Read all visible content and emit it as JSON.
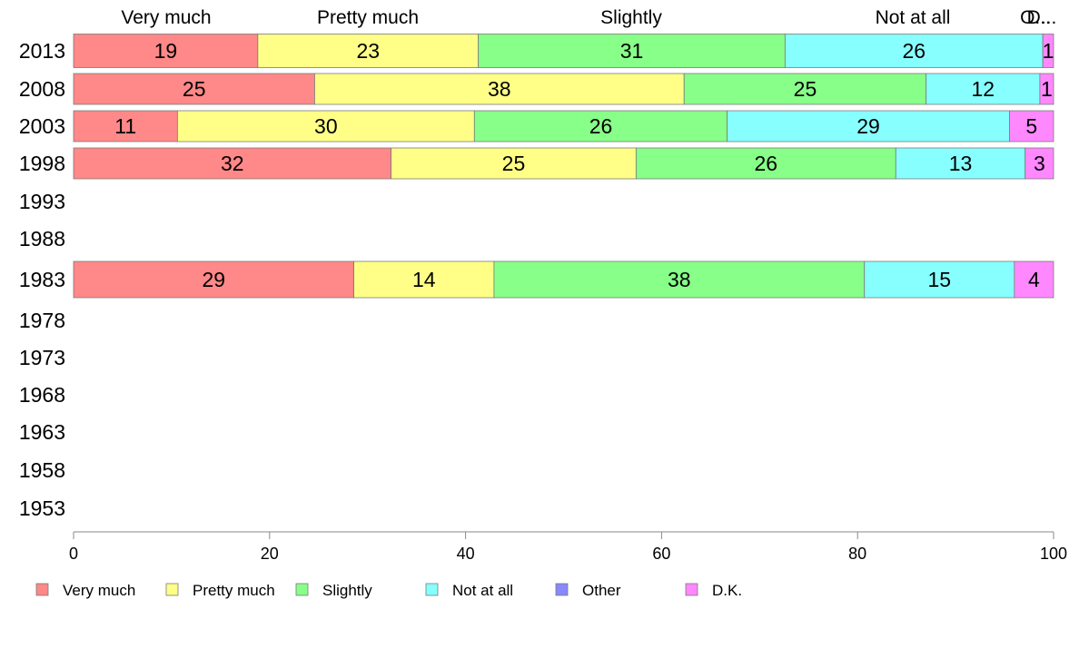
{
  "chart_data": {
    "type": "bar",
    "orientation": "horizontal",
    "stacked": true,
    "title": "",
    "xlabel": "",
    "ylabel": "",
    "xlim": [
      0,
      100
    ],
    "x_ticks": [
      0,
      20,
      40,
      60,
      80,
      100
    ],
    "categories": [
      "2013",
      "2008",
      "2003",
      "1998",
      "1993",
      "1988",
      "1983",
      "1978",
      "1973",
      "1968",
      "1963",
      "1958",
      "1953"
    ],
    "top_labels": [
      "Very much",
      "Pretty much",
      "Slightly",
      "Not at all",
      "O...",
      "D..."
    ],
    "series": [
      {
        "name": "Very much",
        "color": "#ff8888",
        "values": [
          18.8,
          24.6,
          10.6,
          32.4,
          null,
          null,
          28.6,
          null,
          null,
          null,
          null,
          null,
          null
        ],
        "labels": [
          "19",
          "25",
          "11",
          "32",
          "",
          "",
          "29",
          "",
          "",
          "",
          "",
          "",
          ""
        ]
      },
      {
        "name": "Pretty much",
        "color": "#ffff88",
        "values": [
          22.5,
          37.7,
          30.3,
          25.0,
          null,
          null,
          14.3,
          null,
          null,
          null,
          null,
          null,
          null
        ],
        "labels": [
          "23",
          "38",
          "30",
          "25",
          "",
          "",
          "14",
          "",
          "",
          "",
          "",
          "",
          ""
        ]
      },
      {
        "name": "Slightly",
        "color": "#88ff88",
        "values": [
          31.3,
          24.7,
          25.8,
          26.5,
          null,
          null,
          37.8,
          null,
          null,
          null,
          null,
          null,
          null
        ],
        "labels": [
          "31",
          "25",
          "26",
          "26",
          "",
          "",
          "38",
          "",
          "",
          "",
          "",
          "",
          ""
        ]
      },
      {
        "name": "Not at all",
        "color": "#88ffff",
        "values": [
          26.3,
          11.6,
          28.8,
          13.2,
          null,
          null,
          15.3,
          null,
          null,
          null,
          null,
          null,
          null
        ],
        "labels": [
          "26",
          "12",
          "29",
          "13",
          "",
          "",
          "15",
          "",
          "",
          "",
          "",
          "",
          ""
        ]
      },
      {
        "name": "Other",
        "color": "#8888ff",
        "values": [
          0,
          0,
          0,
          0,
          null,
          null,
          0,
          null,
          null,
          null,
          null,
          null,
          null
        ],
        "labels": [
          "",
          "",
          "",
          "",
          "",
          "",
          "",
          "",
          "",
          "",
          "",
          "",
          ""
        ]
      },
      {
        "name": "D.K.",
        "color": "#ff88ff",
        "values": [
          1.1,
          1.4,
          4.5,
          2.9,
          null,
          null,
          4.0,
          null,
          null,
          null,
          null,
          null,
          null
        ],
        "labels": [
          "1",
          "1",
          "5",
          "3",
          "",
          "",
          "4",
          "",
          "",
          "",
          "",
          "",
          ""
        ]
      }
    ],
    "legend": {
      "position": "bottom",
      "entries": [
        "Very much",
        "Pretty much",
        "Slightly",
        "Not at all",
        "Other",
        "D.K."
      ]
    },
    "grid": false
  }
}
